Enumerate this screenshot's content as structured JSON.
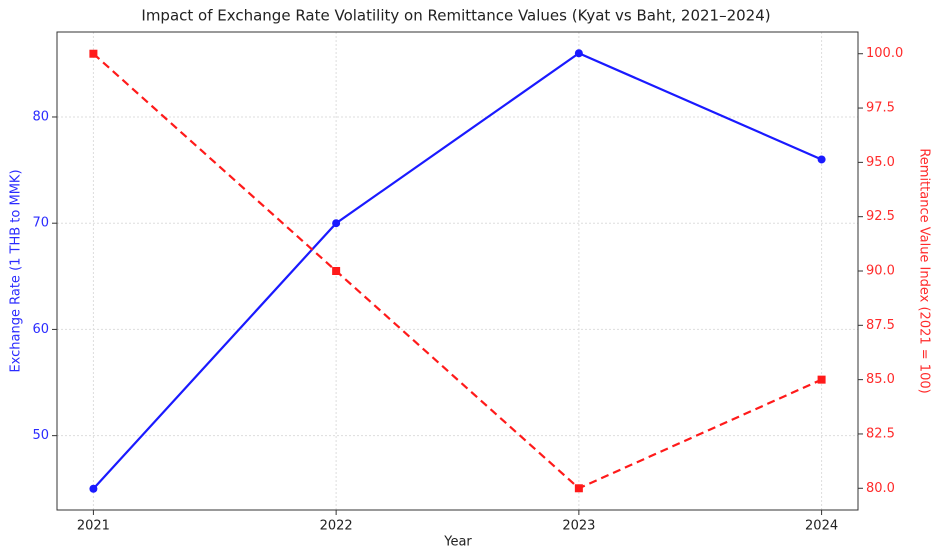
{
  "chart_data": {
    "type": "line",
    "title": "Impact of Exchange Rate Volatility on Remittance Values (Kyat vs Baht, 2021–2024)",
    "xlabel": "Year",
    "ylabel": "Exchange Rate (1 THB to MMK)",
    "y2label": "Remittance Value Index (2021 = 100)",
    "x": [
      2021,
      2022,
      2023,
      2024
    ],
    "xlim": [
      2020.85,
      2024.15
    ],
    "xticks": [
      2021,
      2022,
      2023,
      2024
    ],
    "ylim": [
      43,
      88
    ],
    "yticks": [
      50,
      60,
      70,
      80
    ],
    "y2lim": [
      79,
      101
    ],
    "y2ticks": [
      {
        "value": 80,
        "label": "80.0"
      },
      {
        "value": 82.5,
        "label": "82.5"
      },
      {
        "value": 85,
        "label": "85.0"
      },
      {
        "value": 87.5,
        "label": "87.5"
      },
      {
        "value": 90,
        "label": "90.0"
      },
      {
        "value": 92.5,
        "label": "92.5"
      },
      {
        "value": 95,
        "label": "95.0"
      },
      {
        "value": 97.5,
        "label": "97.5"
      },
      {
        "value": 100,
        "label": "100.0"
      }
    ],
    "grid": true,
    "ycolor": "#2b2bff",
    "y2color": "#ff2b2b",
    "series": [
      {
        "color": "#1a1aff",
        "values": [
          45,
          70,
          86,
          76
        ],
        "linestyle": "solid",
        "marker": "circle"
      },
      {
        "color": "#ff1a1a",
        "values": [
          100,
          90,
          80,
          85
        ],
        "linestyle": "dashed",
        "marker": "square",
        "axis": "y2"
      }
    ]
  }
}
